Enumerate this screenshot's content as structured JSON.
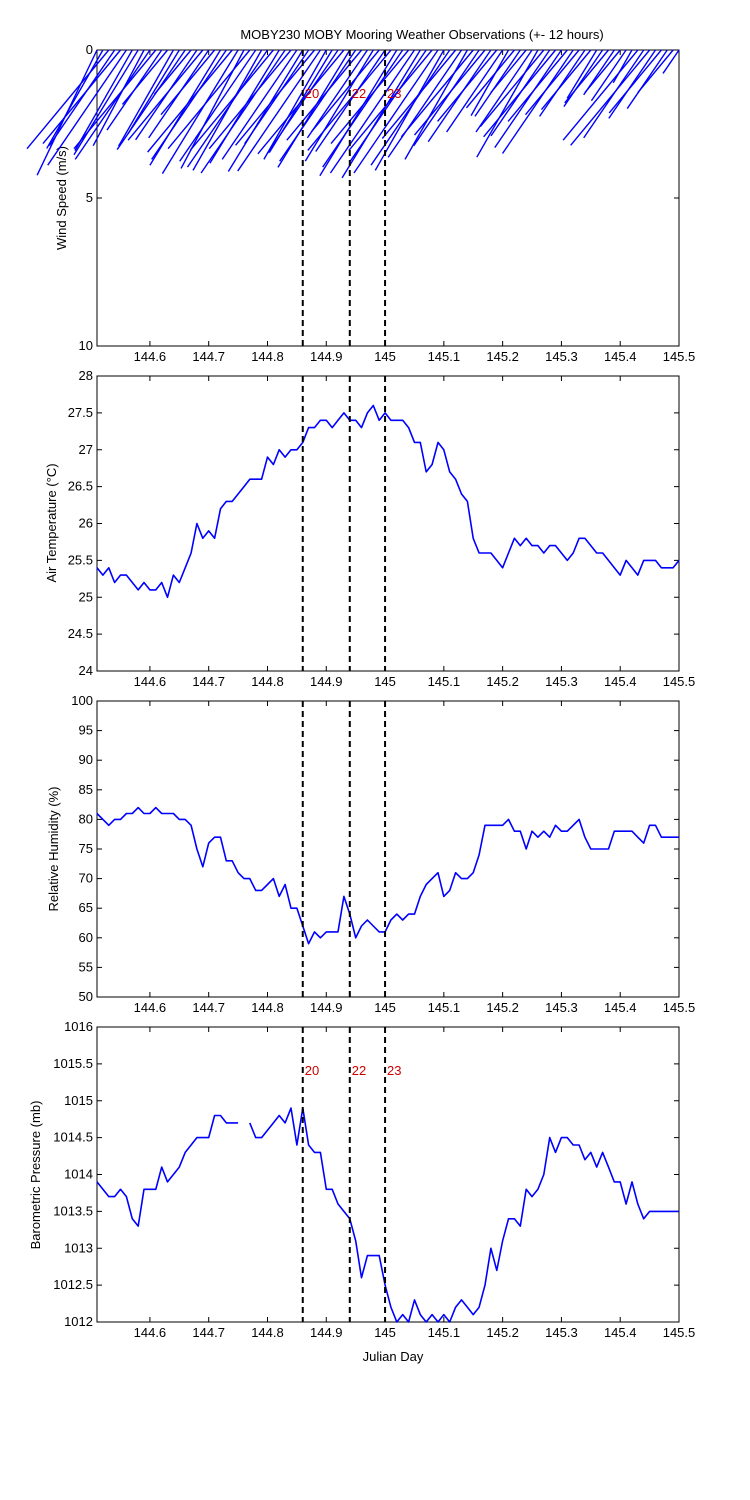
{
  "title": "MOBY230 MOBY Mooring Weather Observations (+- 12 hours)",
  "chart_data": [
    {
      "type": "line",
      "subtype": "stick-plot",
      "ylabel": "Wind Speed (m/s)",
      "xlabel": "",
      "xlim": [
        144.51,
        145.5
      ],
      "ylim": [
        0,
        10
      ],
      "y_reversed": true,
      "xticks": [
        "144.6",
        "144.7",
        "144.8",
        "144.9",
        "145",
        "145.1",
        "145.2",
        "145.3",
        "145.4",
        "145.5"
      ],
      "yticks": [
        "0",
        "5",
        "10"
      ],
      "series": [
        {
          "x": [
            144.51,
            144.52,
            144.53,
            144.54,
            144.55,
            144.56,
            144.57,
            144.58,
            144.59,
            144.6,
            144.61,
            144.62,
            144.63,
            144.64,
            144.65,
            144.66,
            144.67,
            144.68,
            144.69,
            144.7,
            144.71,
            144.72,
            144.73,
            144.74,
            144.75,
            144.76,
            144.77,
            144.78,
            144.79,
            144.8,
            144.81,
            144.82,
            144.83,
            144.84,
            144.85,
            144.86,
            144.87,
            144.88,
            144.89,
            144.9,
            144.91,
            144.92,
            144.93,
            144.94,
            144.95,
            144.96,
            144.97,
            144.98,
            144.99,
            145.0,
            145.01,
            145.02,
            145.03,
            145.04,
            145.05,
            145.06,
            145.07,
            145.08,
            145.09,
            145.1,
            145.11,
            145.12,
            145.13,
            145.14,
            145.15,
            145.16,
            145.17,
            145.18,
            145.19,
            145.2,
            145.21,
            145.22,
            145.23,
            145.24,
            145.25,
            145.26,
            145.27,
            145.28,
            145.29,
            145.3,
            145.31,
            145.32,
            145.33,
            145.34,
            145.35,
            145.36,
            145.37,
            145.38,
            145.39,
            145.4,
            145.41,
            145.42,
            145.43,
            145.44,
            145.45,
            145.46,
            145.47,
            145.48,
            145.49,
            145.5
          ],
          "speed": [
            5.2,
            4.5,
            5.8,
            4.9,
            5.5,
            5.9,
            4.6,
            5.0,
            4.2,
            5.6,
            5.8,
            4.1,
            3.2,
            4.4,
            4.0,
            5.1,
            2.6,
            4.6,
            5.3,
            4.5,
            3.8,
            5.5,
            5.6,
            6.0,
            5.9,
            5.2,
            5.8,
            5.7,
            5.5,
            6.0,
            5.9,
            5.4,
            6.3,
            5.8,
            5.6,
            5.8,
            4.8,
            5.6,
            6.2,
            5.0,
            4.9,
            5.3,
            6.1,
            5.6,
            5.7,
            5.3,
            4.5,
            5.3,
            4.8,
            5.2,
            5.9,
            6.0,
            6.0,
            5.5,
            6.3,
            6.1,
            5.7,
            5.9,
            6.3,
            5.5,
            5.9,
            5.2,
            5.5,
            5.0,
            5.1,
            4.9,
            5.0,
            4.7,
            4.2,
            4.2,
            3.0,
            3.4,
            3.4,
            2.5,
            4.2,
            4.9,
            4.5,
            4.4,
            5.1,
            5.0,
            4.2,
            5.3,
            3.8,
            3.4,
            3.5,
            2.3,
            2.9,
            3.1,
            2.3,
            2.5,
            2.6,
            1.5,
            5.3,
            4.5,
            5.6,
            3.5,
            3.7,
            3.0,
            2.5,
            1.2
          ],
          "direction_deg": [
            315,
            310,
            300,
            305,
            300,
            305,
            310,
            308,
            312,
            305,
            300,
            305,
            300,
            310,
            308,
            305,
            300,
            305,
            300,
            305,
            300,
            308,
            305,
            300,
            308,
            312,
            300,
            305,
            310,
            305,
            300,
            308,
            305,
            300,
            305,
            308,
            305,
            300,
            305,
            310,
            308,
            305,
            300,
            308,
            305,
            300,
            305,
            308,
            300,
            305,
            300,
            308,
            305,
            300,
            305,
            308,
            305,
            300,
            305,
            310,
            305,
            300,
            305,
            310,
            300,
            305,
            300,
            305,
            300,
            305,
            310,
            300,
            305,
            300,
            305,
            310,
            300,
            305,
            300,
            305,
            300,
            305,
            300,
            305,
            300,
            308,
            305,
            300,
            305,
            300,
            305,
            310,
            300,
            305,
            300,
            305,
            300,
            305,
            300,
            305
          ]
        }
      ]
    },
    {
      "type": "line",
      "ylabel": "Air Temperature (°C)",
      "xlabel": "",
      "xlim": [
        144.51,
        145.5
      ],
      "ylim": [
        24,
        28
      ],
      "xticks": [
        "144.6",
        "144.7",
        "144.8",
        "144.9",
        "145",
        "145.1",
        "145.2",
        "145.3",
        "145.4",
        "145.5"
      ],
      "yticks": [
        "24",
        "24.5",
        "25",
        "25.5",
        "26",
        "26.5",
        "27",
        "27.5",
        "28"
      ],
      "series": [
        {
          "x": [
            144.51,
            144.52,
            144.53,
            144.54,
            144.55,
            144.56,
            144.57,
            144.58,
            144.59,
            144.6,
            144.61,
            144.62,
            144.63,
            144.64,
            144.65,
            144.66,
            144.67,
            144.68,
            144.69,
            144.7,
            144.71,
            144.72,
            144.73,
            144.74,
            144.75,
            144.76,
            144.77,
            144.78,
            144.79,
            144.8,
            144.81,
            144.82,
            144.83,
            144.84,
            144.85,
            144.86,
            144.87,
            144.88,
            144.89,
            144.9,
            144.91,
            144.92,
            144.93,
            144.94,
            144.95,
            144.96,
            144.97,
            144.98,
            144.99,
            145.0,
            145.01,
            145.02,
            145.03,
            145.04,
            145.05,
            145.06,
            145.07,
            145.08,
            145.09,
            145.1,
            145.11,
            145.12,
            145.13,
            145.14,
            145.15,
            145.16,
            145.17,
            145.18,
            145.19,
            145.2,
            145.21,
            145.22,
            145.23,
            145.24,
            145.25,
            145.26,
            145.27,
            145.28,
            145.29,
            145.3,
            145.31,
            145.32,
            145.33,
            145.34,
            145.35,
            145.36,
            145.37,
            145.38,
            145.39,
            145.4,
            145.41,
            145.42,
            145.43,
            145.44,
            145.45,
            145.46,
            145.47,
            145.48,
            145.49,
            145.5
          ],
          "values": [
            25.4,
            25.3,
            25.4,
            25.2,
            25.3,
            25.3,
            25.2,
            25.1,
            25.2,
            25.1,
            25.1,
            25.2,
            25.0,
            25.3,
            25.2,
            25.4,
            25.6,
            26.0,
            25.8,
            25.9,
            25.8,
            26.2,
            26.3,
            26.3,
            26.4,
            26.5,
            26.6,
            26.6,
            26.6,
            26.9,
            26.8,
            27.0,
            26.9,
            27.0,
            27.0,
            27.1,
            27.3,
            27.3,
            27.4,
            27.4,
            27.3,
            27.4,
            27.5,
            27.4,
            27.4,
            27.3,
            27.5,
            27.6,
            27.4,
            27.5,
            27.4,
            27.4,
            27.4,
            27.3,
            27.1,
            27.1,
            26.7,
            26.8,
            27.1,
            27.0,
            26.7,
            26.6,
            26.4,
            26.3,
            25.8,
            25.6,
            25.6,
            25.6,
            25.5,
            25.4,
            25.6,
            25.8,
            25.7,
            25.8,
            25.7,
            25.7,
            25.6,
            25.7,
            25.7,
            25.6,
            25.5,
            25.6,
            25.8,
            25.8,
            25.7,
            25.6,
            25.6,
            25.5,
            25.4,
            25.3,
            25.5,
            25.4,
            25.3,
            25.5,
            25.5,
            25.5,
            25.4,
            25.4,
            25.4,
            25.5
          ]
        }
      ]
    },
    {
      "type": "line",
      "ylabel": "Relative Humidity (%)",
      "xlabel": "",
      "xlim": [
        144.51,
        145.5
      ],
      "ylim": [
        50,
        100
      ],
      "xticks": [
        "144.6",
        "144.7",
        "144.8",
        "144.9",
        "145",
        "145.1",
        "145.2",
        "145.3",
        "145.4",
        "145.5"
      ],
      "yticks": [
        "50",
        "55",
        "60",
        "65",
        "70",
        "75",
        "80",
        "85",
        "90",
        "95",
        "100"
      ],
      "series": [
        {
          "x": [
            144.51,
            144.52,
            144.53,
            144.54,
            144.55,
            144.56,
            144.57,
            144.58,
            144.59,
            144.6,
            144.61,
            144.62,
            144.63,
            144.64,
            144.65,
            144.66,
            144.67,
            144.68,
            144.69,
            144.7,
            144.71,
            144.72,
            144.73,
            144.74,
            144.75,
            144.76,
            144.77,
            144.78,
            144.79,
            144.8,
            144.81,
            144.82,
            144.83,
            144.84,
            144.85,
            144.86,
            144.87,
            144.88,
            144.89,
            144.9,
            144.91,
            144.92,
            144.93,
            144.94,
            144.95,
            144.96,
            144.97,
            144.98,
            144.99,
            145.0,
            145.01,
            145.02,
            145.03,
            145.04,
            145.05,
            145.06,
            145.07,
            145.08,
            145.09,
            145.1,
            145.11,
            145.12,
            145.13,
            145.14,
            145.15,
            145.16,
            145.17,
            145.18,
            145.19,
            145.2,
            145.21,
            145.22,
            145.23,
            145.24,
            145.25,
            145.26,
            145.27,
            145.28,
            145.29,
            145.3,
            145.31,
            145.32,
            145.33,
            145.34,
            145.35,
            145.36,
            145.37,
            145.38,
            145.39,
            145.4,
            145.41,
            145.42,
            145.43,
            145.44,
            145.45,
            145.46,
            145.47,
            145.48,
            145.49,
            145.5
          ],
          "values": [
            81,
            80,
            79,
            80,
            80,
            81,
            81,
            82,
            81,
            81,
            82,
            81,
            81,
            81,
            80,
            80,
            79,
            75,
            72,
            76,
            77,
            77,
            73,
            73,
            71,
            70,
            70,
            68,
            68,
            69,
            70,
            67,
            69,
            65,
            65,
            62,
            59,
            61,
            60,
            61,
            61,
            61,
            67,
            64,
            60,
            62,
            63,
            62,
            61,
            61,
            63,
            64,
            63,
            64,
            64,
            67,
            69,
            70,
            71,
            67,
            68,
            71,
            70,
            70,
            71,
            74,
            79,
            79,
            79,
            79,
            80,
            78,
            78,
            75,
            78,
            77,
            78,
            77,
            79,
            78,
            78,
            79,
            80,
            77,
            75,
            75,
            75,
            75,
            78,
            78,
            78,
            78,
            77,
            76,
            79,
            79,
            77,
            77,
            77,
            77
          ]
        }
      ]
    },
    {
      "type": "line",
      "ylabel": "Barometric Pressure (mb)",
      "xlabel": "Julian Day",
      "xlim": [
        144.51,
        145.5
      ],
      "ylim": [
        1012,
        1016
      ],
      "xticks": [
        "144.6",
        "144.7",
        "144.8",
        "144.9",
        "145",
        "145.1",
        "145.2",
        "145.3",
        "145.4",
        "145.5"
      ],
      "yticks": [
        "1012",
        "1012.5",
        "1013",
        "1013.5",
        "1014",
        "1014.5",
        "1015",
        "1015.5",
        "1016"
      ],
      "series": [
        {
          "x": [
            144.51,
            144.52,
            144.53,
            144.54,
            144.55,
            144.56,
            144.57,
            144.58,
            144.59,
            144.6,
            144.61,
            144.62,
            144.63,
            144.64,
            144.65,
            144.66,
            144.67,
            144.68,
            144.69,
            144.7,
            144.71,
            144.72,
            144.73,
            144.74,
            144.75,
            144.76,
            144.77,
            144.78,
            144.79,
            144.8,
            144.81,
            144.82,
            144.83,
            144.84,
            144.85,
            144.86,
            144.87,
            144.88,
            144.89,
            144.9,
            144.91,
            144.92,
            144.93,
            144.94,
            144.95,
            144.96,
            144.97,
            144.98,
            144.99,
            145.0,
            145.01,
            145.02,
            145.03,
            145.04,
            145.05,
            145.06,
            145.07,
            145.08,
            145.09,
            145.1,
            145.11,
            145.12,
            145.13,
            145.14,
            145.15,
            145.16,
            145.17,
            145.18,
            145.19,
            145.2,
            145.21,
            145.22,
            145.23,
            145.24,
            145.25,
            145.26,
            145.27,
            145.28,
            145.29,
            145.3,
            145.31,
            145.32,
            145.33,
            145.34,
            145.35,
            145.36,
            145.37,
            145.38,
            145.39,
            145.4,
            145.41,
            145.42,
            145.43,
            145.44,
            145.45,
            145.46,
            145.47,
            145.48,
            145.49,
            145.5
          ],
          "values": [
            1013.9,
            1013.8,
            1013.7,
            1013.7,
            1013.8,
            1013.7,
            1013.4,
            1013.3,
            1013.8,
            1013.8,
            1013.8,
            1014.1,
            1013.9,
            1014.0,
            1014.1,
            1014.3,
            1014.4,
            1014.5,
            1014.5,
            1014.5,
            1014.8,
            1014.8,
            1014.7,
            1014.7,
            1014.7,
            null,
            1014.7,
            1014.5,
            1014.5,
            1014.6,
            1014.7,
            1014.8,
            1014.7,
            1014.9,
            1014.4,
            1014.9,
            1014.4,
            1014.3,
            1014.3,
            1013.8,
            1013.8,
            1013.6,
            1013.5,
            1013.4,
            1013.1,
            1012.6,
            1012.9,
            1012.9,
            1012.9,
            1012.5,
            1012.2,
            1012.0,
            1012.1,
            1012.0,
            1012.3,
            1012.1,
            1012.0,
            1012.1,
            1012.0,
            1012.1,
            1012.0,
            1012.2,
            1012.3,
            1012.2,
            1012.1,
            1012.2,
            1012.5,
            1013.0,
            1012.7,
            1013.1,
            1013.4,
            1013.4,
            1013.3,
            1013.8,
            1013.7,
            1013.8,
            1014.0,
            1014.5,
            1014.3,
            1014.5,
            1014.5,
            1014.4,
            1014.4,
            1014.2,
            1014.3,
            1014.1,
            1014.3,
            1014.1,
            1013.9,
            1013.9,
            1013.6,
            1013.9,
            1013.6,
            1013.4,
            1013.5,
            1013.5,
            1013.5,
            1013.5,
            1013.5,
            1013.5
          ]
        }
      ]
    }
  ],
  "markers": [
    {
      "x": 144.86,
      "label": "20"
    },
    {
      "x": 144.94,
      "label": "22"
    },
    {
      "x": 145.0,
      "label": "23"
    }
  ]
}
